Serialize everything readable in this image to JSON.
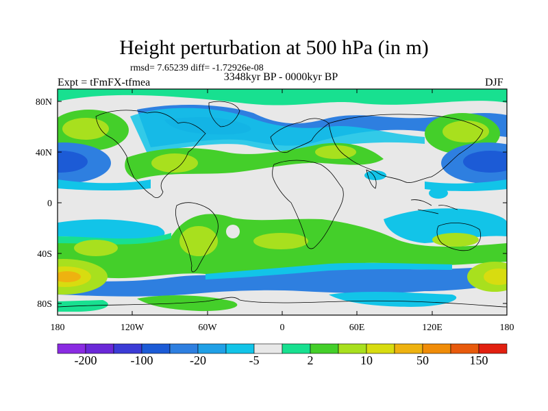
{
  "title": "Height perturbation at 500 hPa (in m)",
  "stats_line": "rmsd= 7.65239 diff= -1.72926e-08",
  "period": "3348kyr BP - 0000kyr BP",
  "experiment": "Expt = tFmFX-tfmea",
  "season": "DJF",
  "lat_ticks": [
    "80N",
    "40N",
    "0",
    "40S",
    "80S"
  ],
  "lon_ticks": [
    "180",
    "120W",
    "60W",
    "0",
    "60E",
    "120E",
    "180"
  ],
  "colorbar": {
    "colors": [
      "#8a2be2",
      "#6a28d8",
      "#3b3bd6",
      "#1c5bd6",
      "#2e7fe0",
      "#20a0e6",
      "#12c4e8",
      "#e8e8e8",
      "#18e090",
      "#44cf2a",
      "#a8e01e",
      "#d8dc10",
      "#eeb210",
      "#f08c08",
      "#e85a0c",
      "#e22010"
    ],
    "labels": [
      "-200",
      "-100",
      "-20",
      "-5",
      "2",
      "10",
      "50",
      "150"
    ]
  },
  "colors": {
    "strong_neg": "#1c5bd6",
    "mid_neg": "#2e7fe0",
    "weak_neg": "#12c4e8",
    "neutral": "#e8e8e8",
    "weak_pos": "#18e090",
    "mid_pos": "#44cf2a",
    "pos": "#a8e01e",
    "strong_pos": "#d8dc10",
    "peak_pos": "#eeb210"
  }
}
